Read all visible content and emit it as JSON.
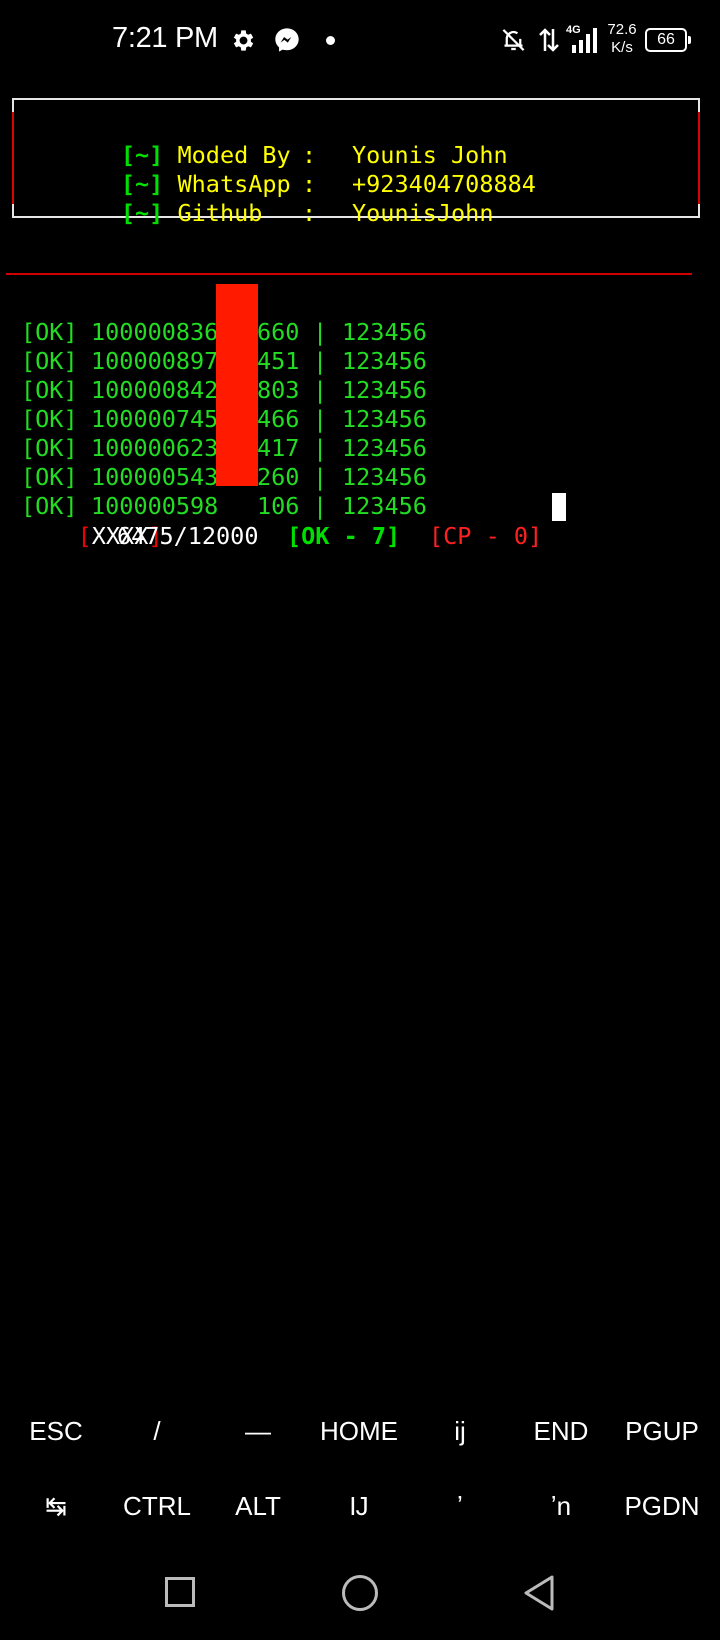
{
  "status_bar": {
    "time": "7:21 PM",
    "network": "4G",
    "speed_value": "72.6",
    "speed_unit": "K/s",
    "battery": "66",
    "icons": [
      "gear-icon",
      "messenger-icon",
      "dot-icon",
      "bell-off-icon",
      "data-arrows-icon",
      "signal-icon",
      "battery-icon"
    ]
  },
  "banner": {
    "rows": [
      {
        "tag": "[~]",
        "key": "Moded By",
        "colon": ":",
        "value": "Younis John"
      },
      {
        "tag": "[~]",
        "key": "WhatsApp",
        "colon": ":",
        "value": "+923404708884"
      },
      {
        "tag": "[~]",
        "key": "Github",
        "colon": ":",
        "value": "YounisJohn"
      }
    ]
  },
  "results": [
    {
      "tag": "[OK]",
      "prefix": "100000836",
      "suffix": "660",
      "sep": "|",
      "password": "123456"
    },
    {
      "tag": "[OK]",
      "prefix": "100000897",
      "suffix": "451",
      "sep": "|",
      "password": "123456"
    },
    {
      "tag": "[OK]",
      "prefix": "100000842",
      "suffix": "803",
      "sep": "|",
      "password": "123456"
    },
    {
      "tag": "[OK]",
      "prefix": "100000745",
      "suffix": "466",
      "sep": "|",
      "password": "123456"
    },
    {
      "tag": "[OK]",
      "prefix": "100000623",
      "suffix": "417",
      "sep": "|",
      "password": "123456"
    },
    {
      "tag": "[OK]",
      "prefix": "100000543",
      "suffix": "260",
      "sep": "|",
      "password": "123456"
    },
    {
      "tag": "[OK]",
      "prefix": "100000598",
      "suffix": "106",
      "sep": "|",
      "password": "123456"
    }
  ],
  "progress": {
    "open": "[",
    "name": "XXXX",
    "close": "]",
    "count": "6475/12000",
    "ok": "[OK - 7]",
    "cp": "[CP - 0]"
  },
  "extra_keys": {
    "row1": [
      "ESC",
      "/",
      "—",
      "HOME",
      "ĳ",
      "END",
      "PGUP"
    ],
    "row2": [
      "↹",
      "CTRL",
      "ALT",
      "Ĳ",
      "ʼ",
      "ʼn",
      "PGDN"
    ]
  },
  "colors": {
    "ok_green": "#22dd22",
    "banner_yellow": "#ffff00",
    "accent_red": "#d00000",
    "redaction": "#ff1a00"
  }
}
